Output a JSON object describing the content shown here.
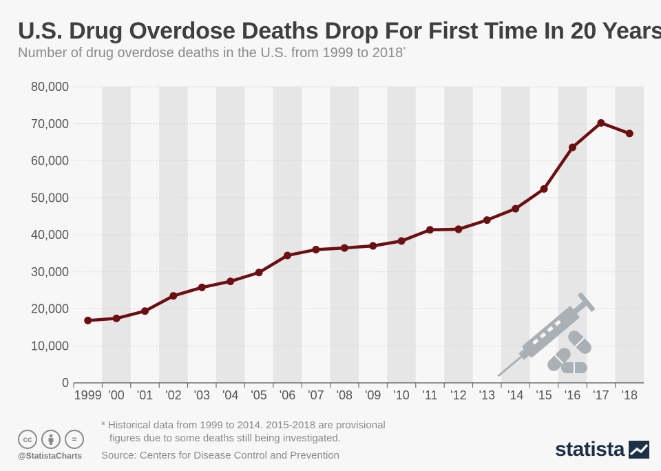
{
  "header": {
    "title": "U.S. Drug Overdose Deaths Drop For First Time In 20 Years",
    "subtitle": "Number of drug overdose deaths in the U.S. from 1999 to 2018",
    "subtitle_mark": "*"
  },
  "chart_data": {
    "type": "line",
    "title": "U.S. Drug Overdose Deaths Drop For First Time In 20 Years",
    "xlabel": "",
    "ylabel": "",
    "categories": [
      "1999",
      "'00",
      "'01",
      "'02",
      "'03",
      "'04",
      "'05",
      "'06",
      "'07",
      "'08",
      "'09",
      "'10",
      "'11",
      "'12",
      "'13",
      "'14",
      "'15",
      "'16",
      "'17",
      "'18"
    ],
    "values": [
      16849,
      17415,
      19394,
      23518,
      25785,
      27424,
      29813,
      34425,
      36010,
      36450,
      37004,
      38329,
      41340,
      41502,
      43982,
      47055,
      52404,
      63632,
      70237,
      67367
    ],
    "ylim": [
      0,
      80000
    ],
    "yticks": [
      0,
      10000,
      20000,
      30000,
      40000,
      50000,
      60000,
      70000,
      80000
    ],
    "ytick_labels": [
      "0",
      "10,000",
      "20,000",
      "30,000",
      "40,000",
      "50,000",
      "60,000",
      "70,000",
      "80,000"
    ],
    "grid": true,
    "line_color": "#6b0f12",
    "band_color": "#e6e6e6"
  },
  "footer": {
    "footnote_line1": "* Historical data from 1999 to 2014. 2015-2018 are provisional",
    "footnote_line2": "figures due to some deaths still being investigated.",
    "source": "Source: Centers for Disease Control and Prevention",
    "handle": "@StatistaCharts",
    "brand": "statista",
    "license_icons": [
      "cc",
      "by",
      "="
    ]
  },
  "colors": {
    "title": "#3f3f3f",
    "text_muted": "#8a8a8a",
    "brand": "#1d3146",
    "illustration": "#a9b0b6"
  }
}
